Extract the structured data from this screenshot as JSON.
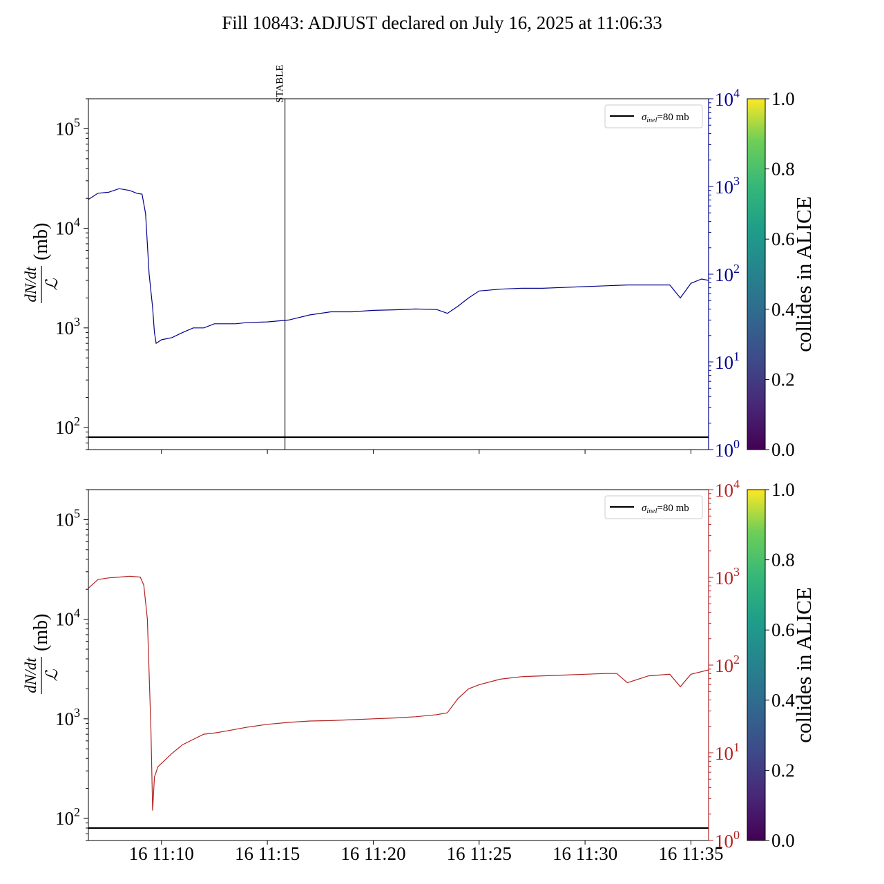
{
  "title": "Fill 10843: ADJUST declared on July 16, 2025 at 11:06:33",
  "colors": {
    "top_series": "#00008b",
    "bottom_series": "#b22222",
    "axis": "#000000",
    "reference_line": "#000000"
  },
  "colorbar": {
    "label": "collides in ALICE",
    "colormap": "viridis",
    "ticks": [
      "0.0",
      "0.2",
      "0.4",
      "0.6",
      "0.8",
      "1.0"
    ],
    "range": [
      0,
      1
    ]
  },
  "chart_data": [
    {
      "type": "line",
      "panel": "top",
      "ylabel": "dN/dt / ℒ (mb)",
      "ylabel_num": "dN/dt",
      "ylabel_den": "ℒ",
      "ylabel_unit": "(mb)",
      "yscale": "log",
      "ylim": [
        60,
        200000
      ],
      "yticks": [
        "10²",
        "10³",
        "10⁴",
        "10⁵"
      ],
      "y2scale": "log",
      "y2lim": [
        1,
        10000
      ],
      "y2ticks": [
        "10⁰",
        "10¹",
        "10²",
        "10³",
        "10⁴"
      ],
      "y2color": "#00008b",
      "xlim": [
        "2025-07-16 11:06:33",
        "2025-07-16 11:35:50"
      ],
      "xticks": [
        "16 11:10",
        "16 11:15",
        "16 11:20",
        "16 11:25",
        "16 11:30",
        "16 11:35"
      ],
      "xtick_labels_visible": false,
      "vline": {
        "time": "2025-07-16 11:15:50",
        "label": "STABLE"
      },
      "hline": {
        "value": 80,
        "legend": "σinel=80 mb"
      },
      "legend": {
        "location": "upper right",
        "entry_symbol": "σ",
        "entry_sub": "inel",
        "entry_rest": "=80 mb"
      },
      "series": [
        {
          "color": "#00008b",
          "x": [
            "11:06:33",
            "11:07:00",
            "11:07:30",
            "11:08:00",
            "11:08:30",
            "11:08:50",
            "11:09:05",
            "11:09:15",
            "11:09:25",
            "11:09:35",
            "11:09:40",
            "11:09:45",
            "11:10:00",
            "11:10:30",
            "11:11:00",
            "11:11:30",
            "11:12:00",
            "11:12:30",
            "11:13:00",
            "11:13:30",
            "11:14:00",
            "11:15:00",
            "11:16:00",
            "11:17:00",
            "11:18:00",
            "11:19:00",
            "11:20:00",
            "11:21:00",
            "11:22:00",
            "11:23:00",
            "11:23:30",
            "11:24:00",
            "11:24:30",
            "11:25:00",
            "11:26:00",
            "11:27:00",
            "11:28:00",
            "11:29:00",
            "11:30:00",
            "11:31:00",
            "11:32:00",
            "11:33:00",
            "11:34:00",
            "11:34:30",
            "11:35:00",
            "11:35:30",
            "11:35:50"
          ],
          "y": [
            19500,
            22500,
            23000,
            25000,
            24000,
            22500,
            22000,
            14000,
            3500,
            1600,
            900,
            700,
            760,
            800,
            900,
            1000,
            1000,
            1100,
            1100,
            1100,
            1130,
            1150,
            1200,
            1350,
            1450,
            1450,
            1500,
            1520,
            1550,
            1530,
            1400,
            1650,
            2000,
            2350,
            2450,
            2500,
            2500,
            2550,
            2600,
            2650,
            2700,
            2700,
            2700,
            2000,
            2800,
            3100,
            3000
          ]
        }
      ]
    },
    {
      "type": "line",
      "panel": "bottom",
      "ylabel": "dN/dt / ℒ (mb)",
      "ylabel_num": "dN/dt",
      "ylabel_den": "ℒ",
      "ylabel_unit": "(mb)",
      "yscale": "log",
      "ylim": [
        60,
        200000
      ],
      "yticks": [
        "10²",
        "10³",
        "10⁴",
        "10⁵"
      ],
      "y2scale": "log",
      "y2lim": [
        1,
        10000
      ],
      "y2ticks": [
        "10⁰",
        "10¹",
        "10²",
        "10³",
        "10⁴"
      ],
      "y2color": "#b22222",
      "xlim": [
        "2025-07-16 11:06:33",
        "2025-07-16 11:35:50"
      ],
      "xticks": [
        "16 11:10",
        "16 11:15",
        "16 11:20",
        "16 11:25",
        "16 11:30",
        "16 11:35"
      ],
      "xtick_labels_visible": true,
      "hline": {
        "value": 80,
        "legend": "σinel=80 mb"
      },
      "legend": {
        "location": "upper right",
        "entry_symbol": "σ",
        "entry_sub": "inel",
        "entry_rest": "=80 mb"
      },
      "series": [
        {
          "color": "#b22222",
          "x": [
            "11:06:33",
            "11:07:00",
            "11:07:30",
            "11:08:00",
            "11:08:30",
            "11:09:00",
            "11:09:10",
            "11:09:20",
            "11:09:30",
            "11:09:35",
            "11:09:40",
            "11:09:50",
            "11:10:30",
            "11:11:00",
            "11:12:00",
            "11:12:30",
            "11:13:00",
            "11:14:00",
            "11:15:00",
            "11:16:00",
            "11:17:00",
            "11:18:00",
            "11:19:00",
            "11:20:00",
            "11:21:00",
            "11:22:00",
            "11:23:00",
            "11:23:30",
            "11:24:00",
            "11:24:30",
            "11:25:00",
            "11:26:00",
            "11:27:00",
            "11:28:00",
            "11:29:00",
            "11:30:00",
            "11:31:00",
            "11:31:30",
            "11:32:00",
            "11:33:00",
            "11:34:00",
            "11:34:30",
            "11:35:00",
            "11:35:50"
          ],
          "y": [
            20500,
            25000,
            26000,
            26500,
            27000,
            26500,
            22000,
            10000,
            800,
            120,
            260,
            330,
            450,
            550,
            700,
            720,
            750,
            820,
            880,
            920,
            950,
            960,
            980,
            1000,
            1020,
            1050,
            1100,
            1150,
            1600,
            2000,
            2200,
            2500,
            2650,
            2700,
            2750,
            2800,
            2850,
            2850,
            2300,
            2700,
            2800,
            2100,
            2800,
            3100
          ]
        }
      ]
    }
  ]
}
